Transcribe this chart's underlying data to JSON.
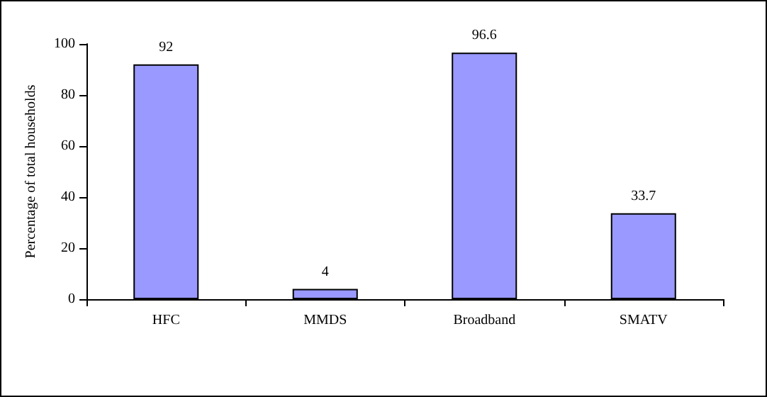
{
  "chart_data": {
    "type": "bar",
    "ylabel": "Percentage of total households",
    "categories": [
      "HFC",
      "MMDS",
      "Broadband",
      "SMATV"
    ],
    "values": [
      92,
      4,
      96.6,
      33.7
    ],
    "color": "#9999ff",
    "ylim": [
      0,
      100
    ],
    "yticks": [
      0,
      20,
      40,
      60,
      80,
      100
    ],
    "grid": false,
    "data_labels": true
  }
}
